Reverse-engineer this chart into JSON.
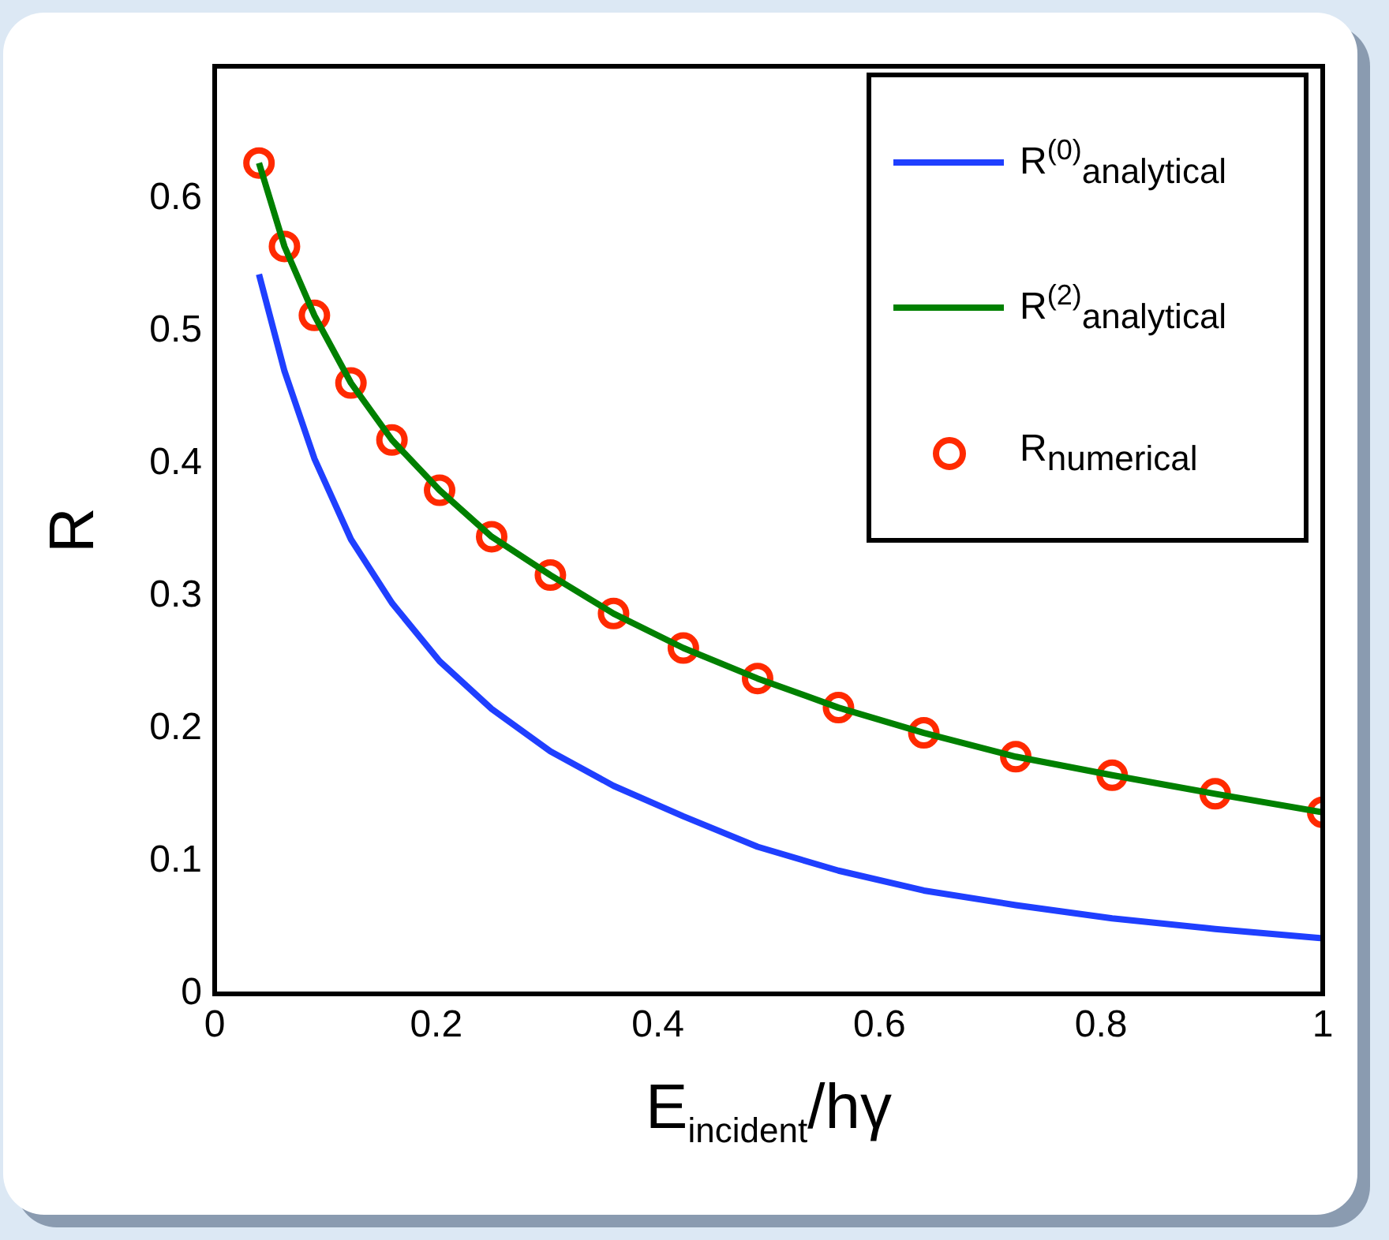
{
  "chart_data": {
    "type": "line",
    "xlabel": "E$_{incident}$/hγ",
    "ylabel": "R",
    "xlim": [
      0,
      1
    ],
    "ylim": [
      0,
      0.7
    ],
    "xticks": [
      0,
      0.2,
      0.4,
      0.6,
      0.8,
      1
    ],
    "yticks": [
      0,
      0.1,
      0.2,
      0.3,
      0.4,
      0.5,
      0.6
    ],
    "grid": false,
    "legend": "top right",
    "x": [
      0.04,
      0.063,
      0.09,
      0.123,
      0.16,
      0.203,
      0.25,
      0.303,
      0.36,
      0.423,
      0.49,
      0.563,
      0.64,
      0.723,
      0.81,
      0.903,
      1
    ],
    "series": [
      {
        "name": "R$^{(0)}$$_{analytical}$",
        "type": "line",
        "color": "#1f3fff",
        "line_style": "solid",
        "marker": "none",
        "values": [
          0.543,
          0.47,
          0.404,
          0.343,
          0.295,
          0.251,
          0.215,
          0.183,
          0.157,
          0.134,
          0.111,
          0.093,
          0.078,
          0.067,
          0.057,
          0.049,
          0.042
        ]
      },
      {
        "name": "R$^{(2)}$$_{analytical}$",
        "type": "line",
        "color": "#008000",
        "line_style": "solid",
        "marker": "none",
        "values": [
          0.627,
          0.564,
          0.512,
          0.461,
          0.418,
          0.38,
          0.345,
          0.316,
          0.287,
          0.261,
          0.238,
          0.216,
          0.197,
          0.179,
          0.165,
          0.151,
          0.137
        ]
      },
      {
        "name": "R$_{numerical}$",
        "type": "scatter",
        "color": "#ff2a00",
        "marker": "circle",
        "values": [
          0.627,
          0.564,
          0.512,
          0.461,
          0.418,
          0.38,
          0.345,
          0.316,
          0.287,
          0.261,
          0.238,
          0.216,
          0.197,
          0.179,
          0.165,
          0.151,
          0.137
        ]
      }
    ]
  }
}
